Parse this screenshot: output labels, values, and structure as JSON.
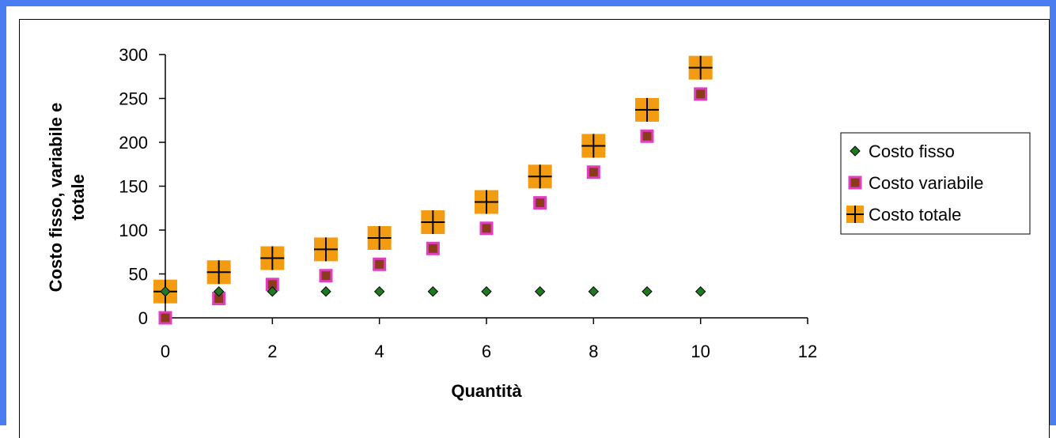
{
  "chart_data": {
    "type": "scatter",
    "title": "",
    "xlabel": "Quantità",
    "ylabel_lines": [
      "Costo fisso, variabile e",
      "totale"
    ],
    "xlim": [
      0,
      12
    ],
    "ylim": [
      0,
      300
    ],
    "xticks": [
      0,
      2,
      4,
      6,
      8,
      10,
      12
    ],
    "yticks": [
      0,
      50,
      100,
      150,
      200,
      250,
      300
    ],
    "grid": false,
    "legend_position": "right",
    "x": [
      0,
      1,
      2,
      3,
      4,
      5,
      6,
      7,
      8,
      9,
      10
    ],
    "series": [
      {
        "name": "Costo fisso",
        "marker": "diamond",
        "color": "#1f7a1f",
        "values": [
          30,
          30,
          30,
          30,
          30,
          30,
          30,
          30,
          30,
          30,
          30
        ]
      },
      {
        "name": "Costo variabile",
        "marker": "square",
        "color": "#e040c0",
        "fill": "#8b3a1a",
        "values": [
          0,
          22,
          38,
          48,
          61,
          79,
          102,
          131,
          166,
          207,
          255
        ]
      },
      {
        "name": "Costo totale",
        "marker": "cross-square",
        "color": "#f39c12",
        "values": [
          30,
          52,
          68,
          78,
          91,
          109,
          132,
          161,
          196,
          237,
          285
        ]
      }
    ]
  }
}
